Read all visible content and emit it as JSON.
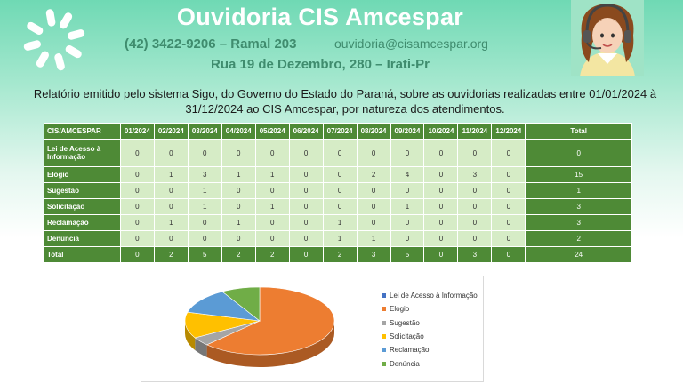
{
  "header": {
    "title": "Ouvidoria CIS Amcespar",
    "phone": "(42) 3422-9206 – Ramal 203",
    "email": "ouvidoria@cisamcespar.org",
    "address": "Rua 19 de Dezembro, 280 – Irati-Pr"
  },
  "report_text": "Relatório emitido pelo sistema Sigo, do Governo do Estado do Paraná, sobre as ouvidorias realizadas entre 01/01/2024 à 31/12/2024 ao CIS Amcespar, por natureza dos atendimentos.",
  "table": {
    "headers": [
      "CIS/AMCESPAR",
      "01/2024",
      "02/2024",
      "03/2024",
      "04/2024",
      "05/2024",
      "06/2024",
      "07/2024",
      "08/2024",
      "09/2024",
      "10/2024",
      "11/2024",
      "12/2024",
      "Total"
    ],
    "rows": [
      {
        "label": "Lei de Acesso à Informação",
        "values": [
          "0",
          "0",
          "0",
          "0",
          "0",
          "0",
          "0",
          "0",
          "0",
          "0",
          "0",
          "0"
        ],
        "total": "0"
      },
      {
        "label": "Elogio",
        "values": [
          "0",
          "1",
          "3",
          "1",
          "1",
          "0",
          "0",
          "2",
          "4",
          "0",
          "3",
          "0"
        ],
        "total": "15"
      },
      {
        "label": "Sugestão",
        "values": [
          "0",
          "0",
          "1",
          "0",
          "0",
          "0",
          "0",
          "0",
          "0",
          "0",
          "0",
          "0"
        ],
        "total": "1"
      },
      {
        "label": "Solicitação",
        "values": [
          "0",
          "0",
          "1",
          "0",
          "1",
          "0",
          "0",
          "0",
          "1",
          "0",
          "0",
          "0"
        ],
        "total": "3"
      },
      {
        "label": "Reclamação",
        "values": [
          "0",
          "1",
          "0",
          "1",
          "0",
          "0",
          "1",
          "0",
          "0",
          "0",
          "0",
          "0"
        ],
        "total": "3"
      },
      {
        "label": "Denúncia",
        "values": [
          "0",
          "0",
          "0",
          "0",
          "0",
          "0",
          "1",
          "1",
          "0",
          "0",
          "0",
          "0"
        ],
        "total": "2"
      },
      {
        "label": "Total",
        "values": [
          "0",
          "2",
          "5",
          "2",
          "2",
          "0",
          "2",
          "3",
          "5",
          "0",
          "3",
          "0"
        ],
        "total": "24"
      }
    ]
  },
  "chart_data": {
    "type": "pie",
    "categories": [
      "Lei de Acesso à Informação",
      "Elogio",
      "Sugestão",
      "Solicitação",
      "Reclamação",
      "Denúncia"
    ],
    "values": [
      0,
      15,
      1,
      3,
      3,
      2
    ],
    "colors": [
      "#4472c4",
      "#ed7d31",
      "#a5a5a5",
      "#ffc000",
      "#5b9bd5",
      "#70ad47"
    ],
    "legend": "right",
    "style": "3d"
  }
}
